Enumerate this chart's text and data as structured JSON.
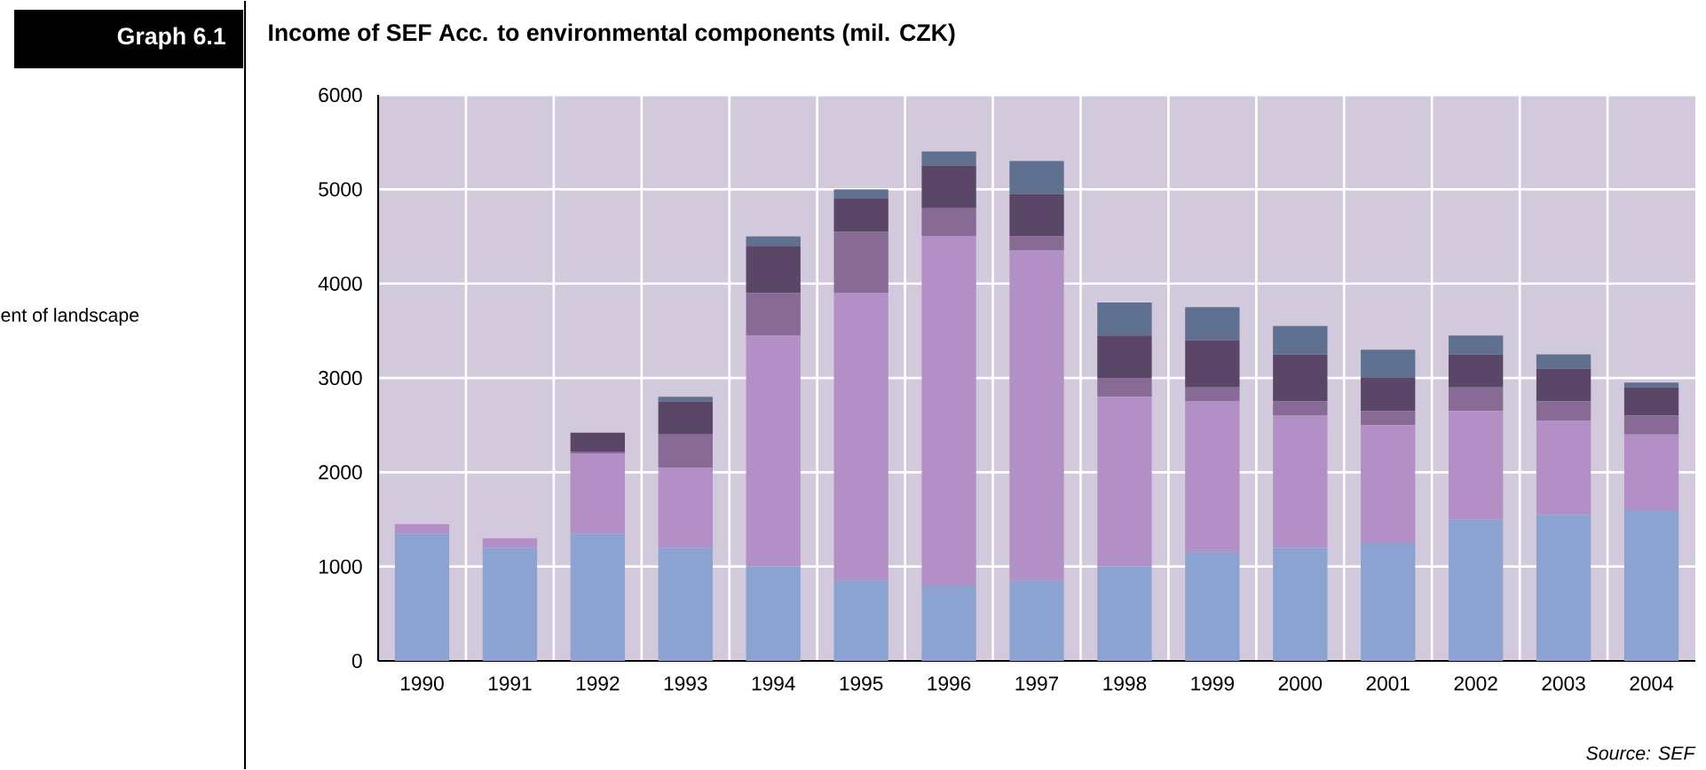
{
  "chart_data": {
    "type": "bar",
    "stacked": true,
    "title": "Income of SEF Acc. to environmental components (mil. CZK)",
    "categories": [
      "1990",
      "1991",
      "1992",
      "1993",
      "1994",
      "1995",
      "1996",
      "1997",
      "1998",
      "1999",
      "2000",
      "2001",
      "2002",
      "2003",
      "2004"
    ],
    "series": [
      {
        "color": "#8ca3d2",
        "values": [
          1350,
          1200,
          1350,
          1200,
          1000,
          850,
          800,
          850,
          1000,
          1150,
          1200,
          1250,
          1500,
          1550,
          1600
        ]
      },
      {
        "color": "#b28fc4",
        "values": [
          100,
          100,
          850,
          850,
          2450,
          3050,
          3700,
          3500,
          1800,
          1600,
          1400,
          1250,
          1150,
          1000,
          800
        ]
      },
      {
        "color": "#876b94",
        "values": [
          0,
          0,
          20,
          350,
          450,
          650,
          300,
          150,
          200,
          150,
          150,
          150,
          250,
          200,
          200
        ]
      },
      {
        "color": "#5a4666",
        "values": [
          0,
          0,
          200,
          350,
          500,
          350,
          450,
          450,
          450,
          500,
          500,
          350,
          350,
          350,
          300
        ]
      },
      {
        "color": "#5f7090",
        "values": [
          0,
          0,
          0,
          50,
          100,
          100,
          150,
          350,
          350,
          350,
          300,
          300,
          200,
          150,
          50
        ]
      }
    ],
    "ylim": [
      0,
      6000
    ],
    "yticks": [
      0,
      1000,
      2000,
      3000,
      4000,
      5000,
      6000
    ],
    "grid": true,
    "annotations": [
      "Graph 6.1",
      "ent of landscape",
      "Source: SEF"
    ]
  }
}
